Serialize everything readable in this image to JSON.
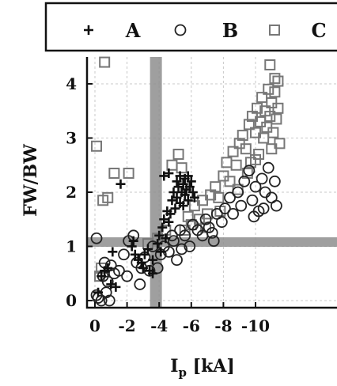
{
  "chart_data": {
    "type": "scatter",
    "xlabel": "I",
    "xlabel_sub": "p",
    "xlabel_unit": " [kA]",
    "ylabel": "FW/BW",
    "x_ticks": [
      "0",
      "-2",
      "-4",
      "-6",
      "-8",
      "-10"
    ],
    "y_ticks": [
      "0",
      "1",
      "2",
      "3",
      "4"
    ],
    "xlim": [
      0.4,
      -11.8
    ],
    "ylim": [
      -0.15,
      4.55
    ],
    "grid": true,
    "legend_position": "top",
    "reference_lines": {
      "x": -3.8,
      "y": 1.08,
      "color": "#8f8f8f"
    },
    "series": [
      {
        "name": "A",
        "marker": "plus",
        "points": [
          [
            -0.2,
            0.15
          ],
          [
            -0.4,
            0.45
          ],
          [
            -0.6,
            0.55
          ],
          [
            -0.8,
            0.6
          ],
          [
            -1.0,
            0.3
          ],
          [
            -1.1,
            0.9
          ],
          [
            -1.3,
            0.25
          ],
          [
            -1.6,
            2.15
          ],
          [
            -2.3,
            1.0
          ],
          [
            -2.5,
            0.85
          ],
          [
            -2.7,
            0.75
          ],
          [
            -2.9,
            0.7
          ],
          [
            -3.0,
            0.6
          ],
          [
            -3.1,
            0.85
          ],
          [
            -3.3,
            0.95
          ],
          [
            -3.6,
            0.75
          ],
          [
            -3.9,
            1.05
          ],
          [
            -4.0,
            1.2
          ],
          [
            -4.1,
            0.9
          ],
          [
            -4.2,
            1.35
          ],
          [
            -4.3,
            1.5
          ],
          [
            -4.4,
            1.15
          ],
          [
            -4.5,
            1.65
          ],
          [
            -4.6,
            1.45
          ],
          [
            -4.7,
            1.6
          ],
          [
            -4.8,
            1.85
          ],
          [
            -4.9,
            2.0
          ],
          [
            -5.0,
            1.7
          ],
          [
            -5.1,
            2.2
          ],
          [
            -5.1,
            1.9
          ],
          [
            -5.2,
            2.1
          ],
          [
            -5.3,
            1.8
          ],
          [
            -5.3,
            2.3
          ],
          [
            -5.4,
            2.0
          ],
          [
            -5.5,
            2.15
          ],
          [
            -5.5,
            1.75
          ],
          [
            -5.6,
            2.25
          ],
          [
            -5.6,
            1.95
          ],
          [
            -5.7,
            2.05
          ],
          [
            -5.8,
            2.3
          ],
          [
            -5.8,
            1.85
          ],
          [
            -5.9,
            2.1
          ],
          [
            -6.0,
            2.2
          ],
          [
            -6.1,
            2.0
          ],
          [
            -6.2,
            1.9
          ],
          [
            -4.3,
            2.3
          ],
          [
            -4.6,
            2.35
          ],
          [
            -3.6,
            0.5
          ],
          [
            -3.4,
            0.55
          ],
          [
            -2.4,
            1.1
          ]
        ]
      },
      {
        "name": "B",
        "marker": "circle",
        "points": [
          [
            -0.1,
            0.1
          ],
          [
            -0.2,
            0.05
          ],
          [
            -0.4,
            0.0
          ],
          [
            -0.5,
            0.45
          ],
          [
            -0.6,
            0.7
          ],
          [
            -0.8,
            0.35
          ],
          [
            -0.9,
            0.0
          ],
          [
            -1.0,
            0.65
          ],
          [
            -1.2,
            0.5
          ],
          [
            -1.5,
            0.55
          ],
          [
            -1.8,
            0.85
          ],
          [
            -2.0,
            0.45
          ],
          [
            -2.1,
            1.1
          ],
          [
            -2.4,
            1.2
          ],
          [
            -2.6,
            0.7
          ],
          [
            -2.9,
            0.6
          ],
          [
            -3.1,
            0.8
          ],
          [
            -3.4,
            0.55
          ],
          [
            -3.6,
            1.0
          ],
          [
            -3.9,
            0.6
          ],
          [
            -4.1,
            0.85
          ],
          [
            -4.3,
            1.0
          ],
          [
            -4.6,
            0.9
          ],
          [
            -4.9,
            1.1
          ],
          [
            -5.1,
            0.75
          ],
          [
            -5.3,
            1.3
          ],
          [
            -5.6,
            1.2
          ],
          [
            -5.9,
            1.0
          ],
          [
            -6.1,
            1.4
          ],
          [
            -6.4,
            1.3
          ],
          [
            -6.7,
            1.2
          ],
          [
            -6.9,
            1.5
          ],
          [
            -7.1,
            1.35
          ],
          [
            -7.3,
            1.25
          ],
          [
            -7.6,
            1.6
          ],
          [
            -7.9,
            1.45
          ],
          [
            -8.1,
            1.7
          ],
          [
            -8.4,
            1.9
          ],
          [
            -8.6,
            1.6
          ],
          [
            -8.9,
            2.0
          ],
          [
            -9.1,
            1.75
          ],
          [
            -9.3,
            2.2
          ],
          [
            -9.6,
            2.4
          ],
          [
            -9.8,
            1.85
          ],
          [
            -10.0,
            2.1
          ],
          [
            -10.2,
            1.65
          ],
          [
            -10.4,
            2.25
          ],
          [
            -10.6,
            2.0
          ],
          [
            -10.8,
            2.45
          ],
          [
            -11.0,
            1.9
          ],
          [
            -11.2,
            2.2
          ],
          [
            -11.3,
            1.75
          ],
          [
            -9.9,
            1.55
          ],
          [
            -10.5,
            1.7
          ],
          [
            -4.8,
            1.2
          ],
          [
            -5.4,
            0.95
          ],
          [
            -0.1,
            1.15
          ],
          [
            -0.7,
            0.15
          ],
          [
            -2.8,
            0.3
          ],
          [
            -7.4,
            1.1
          ]
        ]
      },
      {
        "name": "C",
        "marker": "square",
        "points": [
          [
            -0.1,
            2.85
          ],
          [
            -0.5,
            1.85
          ],
          [
            -0.8,
            1.9
          ],
          [
            -0.6,
            4.4
          ],
          [
            -1.2,
            2.35
          ],
          [
            -2.1,
            2.35
          ],
          [
            -0.3,
            0.45
          ],
          [
            -0.4,
            0.6
          ],
          [
            -4.8,
            2.5
          ],
          [
            -5.2,
            2.7
          ],
          [
            -5.4,
            2.45
          ],
          [
            -5.6,
            1.3
          ],
          [
            -5.8,
            1.55
          ],
          [
            -6.0,
            1.4
          ],
          [
            -6.2,
            1.75
          ],
          [
            -6.5,
            1.5
          ],
          [
            -6.7,
            1.85
          ],
          [
            -7.0,
            1.6
          ],
          [
            -7.2,
            1.95
          ],
          [
            -7.5,
            2.1
          ],
          [
            -7.7,
            1.9
          ],
          [
            -8.0,
            2.3
          ],
          [
            -8.2,
            2.55
          ],
          [
            -8.4,
            2.2
          ],
          [
            -8.6,
            2.75
          ],
          [
            -8.8,
            2.5
          ],
          [
            -9.0,
            2.9
          ],
          [
            -9.2,
            3.05
          ],
          [
            -9.4,
            2.8
          ],
          [
            -9.6,
            3.25
          ],
          [
            -9.8,
            3.4
          ],
          [
            -10.0,
            3.1
          ],
          [
            -10.1,
            3.55
          ],
          [
            -10.3,
            3.3
          ],
          [
            -10.4,
            3.75
          ],
          [
            -10.5,
            3.0
          ],
          [
            -10.6,
            3.5
          ],
          [
            -10.7,
            3.2
          ],
          [
            -10.8,
            3.9
          ],
          [
            -10.9,
            3.4
          ],
          [
            -11.0,
            3.65
          ],
          [
            -11.1,
            3.1
          ],
          [
            -11.2,
            3.85
          ],
          [
            -11.3,
            3.35
          ],
          [
            -11.4,
            4.05
          ],
          [
            -11.4,
            3.55
          ],
          [
            -11.5,
            2.9
          ],
          [
            -10.9,
            4.35
          ],
          [
            -11.2,
            4.1
          ],
          [
            -10.2,
            2.7
          ],
          [
            -9.7,
            2.55
          ],
          [
            -8.9,
            2.05
          ],
          [
            -3.3,
            1.05
          ],
          [
            -3.9,
            1.15
          ],
          [
            -4.4,
            1.3
          ],
          [
            -6.9,
            1.35
          ],
          [
            -7.8,
            1.65
          ],
          [
            -9.5,
            2.35
          ],
          [
            -10.0,
            2.6
          ],
          [
            -11.0,
            2.8
          ]
        ]
      }
    ]
  }
}
